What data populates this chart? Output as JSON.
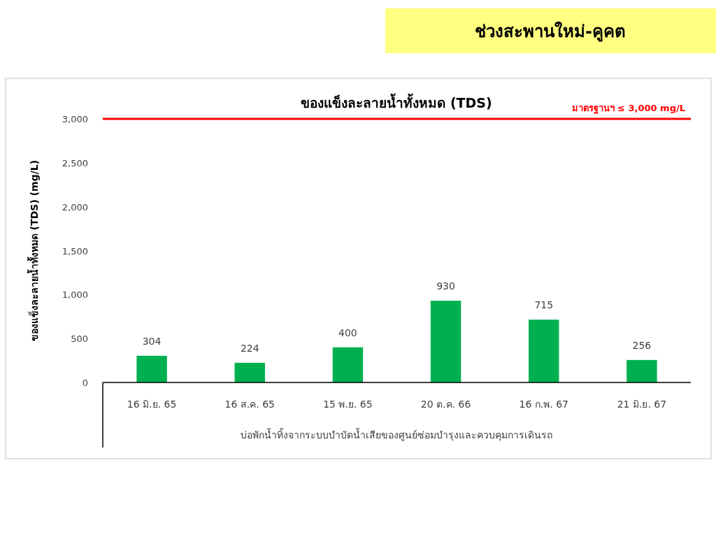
{
  "chart_data": {
    "type": "bar",
    "subtitle": "ช่วงสะพานใหม่-คูคต",
    "title": "ของแข็งละลายน้ำทั้งหมด (TDS)",
    "ylabel": "ของแข็งละลายน้ำทั้งหมด (TDS) (mg/L)",
    "xlabel": "บ่อพักน้ำทิ้งจากระบบบำบัดน้ำเสียของศูนย์ซ่อมบำรุงและควบคุมการเดินรถ",
    "categories": [
      "16 มิ.ย. 65",
      "16 ส.ค. 65",
      "15 พ.ย. 65",
      "20 ต.ค. 66",
      "16 ก.พ. 67",
      "21 มิ.ย. 67"
    ],
    "values": [
      304,
      224,
      400,
      930,
      715,
      256
    ],
    "color": "#00b050",
    "data_labels": true,
    "ylim": [
      0,
      3000
    ],
    "yticks": [
      0,
      500,
      {
        "value": 1000,
        "label": "1,000"
      },
      {
        "value": 1500,
        "label": "1,500"
      },
      {
        "value": 2000,
        "label": "2,000"
      },
      {
        "value": 2500,
        "label": "2,500"
      },
      {
        "value": 3000,
        "label": "3,000"
      }
    ],
    "ref_lines": [
      {
        "axis": "y",
        "value": 3000,
        "label": "มาตรฐานฯ ≤ 3,000 mg/L",
        "color": "#ff0000"
      }
    ],
    "grid": false
  }
}
